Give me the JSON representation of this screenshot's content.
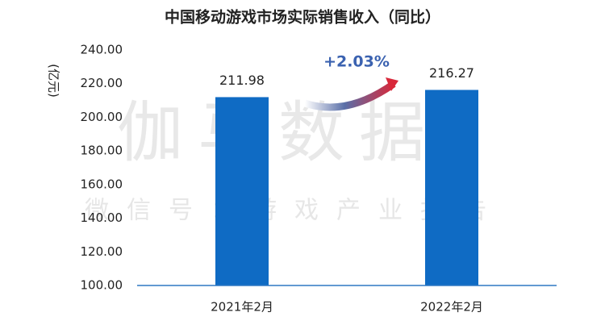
{
  "chart_data": {
    "type": "bar",
    "title": "中国移动游戏市场实际销售收入（同比）",
    "y_label": "(亿元)",
    "categories": [
      "2021年2月",
      "2022年2月"
    ],
    "values": [
      211.98,
      216.27
    ],
    "color": "#0f6bc4",
    "annotation": "+2.03%",
    "watermark": "伽马数据",
    "watermark_sub": "微信号：游戏产业报告",
    "ylim": [
      100,
      240
    ],
    "yticks": [
      {
        "value": 100,
        "label": "100.00"
      },
      {
        "value": 120,
        "label": "120.00"
      },
      {
        "value": 140,
        "label": "140.00"
      },
      {
        "value": 160,
        "label": "160.00"
      },
      {
        "value": 180,
        "label": "180.00"
      },
      {
        "value": 200,
        "label": "200.00"
      },
      {
        "value": 220,
        "label": "220.00"
      },
      {
        "value": 240,
        "label": "240.00"
      }
    ],
    "grid": false
  }
}
